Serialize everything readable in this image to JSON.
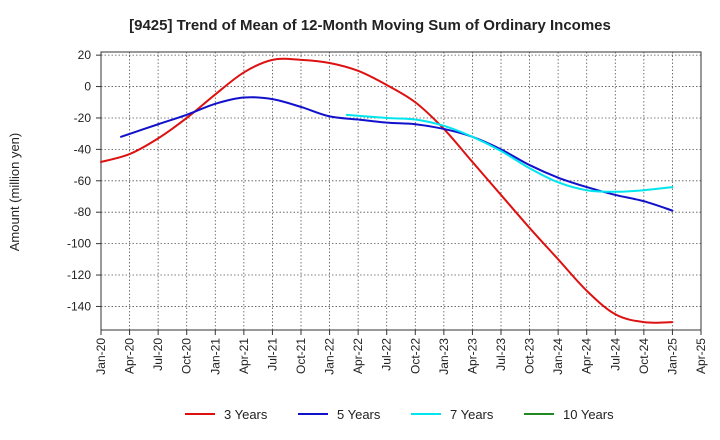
{
  "chart_data": {
    "type": "line",
    "title": "[9425]  Trend of Mean of 12-Month Moving Sum of Ordinary Incomes",
    "xlabel": "",
    "ylabel": "Amount (million yen)",
    "ylim": [
      -155,
      22
    ],
    "y_ticks": [
      20,
      0,
      -20,
      -40,
      -60,
      -80,
      -100,
      -120,
      -140
    ],
    "y_tick_labels": [
      "20",
      "0",
      "-20",
      "-40",
      "-60",
      "-80",
      "-100",
      "-120",
      "-140"
    ],
    "x_tick_labels": [
      "Jan-20",
      "Apr-20",
      "Jul-20",
      "Oct-20",
      "Jan-21",
      "Apr-21",
      "Jul-21",
      "Oct-21",
      "Jan-22",
      "Apr-22",
      "Jul-22",
      "Oct-22",
      "Jan-23",
      "Apr-23",
      "Jul-23",
      "Oct-23",
      "Jan-24",
      "Apr-24",
      "Jul-24",
      "Oct-24",
      "Jan-25",
      "Apr-25"
    ],
    "grid": true,
    "legend_position": "bottom",
    "series": [
      {
        "name": "3 Years",
        "color": "#dd1111",
        "points": [
          [
            0,
            -48
          ],
          [
            1,
            -43
          ],
          [
            2,
            -33
          ],
          [
            3,
            -20
          ],
          [
            4,
            -5
          ],
          [
            5,
            9
          ],
          [
            6,
            17
          ],
          [
            7,
            17
          ],
          [
            8,
            15
          ],
          [
            9,
            10
          ],
          [
            10,
            1
          ],
          [
            11,
            -10
          ],
          [
            12,
            -27
          ],
          [
            13,
            -48
          ],
          [
            14,
            -69
          ],
          [
            15,
            -90
          ],
          [
            16,
            -110
          ],
          [
            17,
            -130
          ],
          [
            18,
            -145
          ],
          [
            19,
            -150
          ],
          [
            20,
            -150
          ]
        ]
      },
      {
        "name": "5 Years",
        "color": "#1111cc",
        "points": [
          [
            0.7,
            -32
          ],
          [
            2,
            -24
          ],
          [
            3,
            -18
          ],
          [
            4,
            -11
          ],
          [
            5,
            -7
          ],
          [
            6,
            -8
          ],
          [
            7,
            -13
          ],
          [
            8,
            -19
          ],
          [
            9,
            -21
          ],
          [
            10,
            -23
          ],
          [
            11,
            -24
          ],
          [
            12,
            -27
          ],
          [
            13,
            -32
          ],
          [
            14,
            -40
          ],
          [
            15,
            -50
          ],
          [
            16,
            -58
          ],
          [
            17,
            -64
          ],
          [
            18,
            -69
          ],
          [
            19,
            -73
          ],
          [
            20,
            -79
          ]
        ]
      },
      {
        "name": "7 Years",
        "color": "#00e5ee",
        "points": [
          [
            8.6,
            -18
          ],
          [
            10,
            -20
          ],
          [
            11,
            -21
          ],
          [
            12,
            -25
          ],
          [
            13,
            -32
          ],
          [
            14,
            -41
          ],
          [
            15,
            -52
          ],
          [
            16,
            -61
          ],
          [
            17,
            -66
          ],
          [
            18,
            -67
          ],
          [
            19,
            -66
          ],
          [
            20,
            -64
          ]
        ]
      },
      {
        "name": "10 Years",
        "color": "#228822",
        "points": []
      }
    ]
  }
}
